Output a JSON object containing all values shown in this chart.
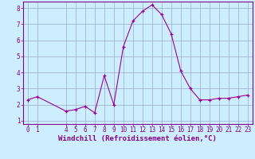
{
  "x": [
    0,
    1,
    4,
    5,
    6,
    7,
    8,
    9,
    10,
    11,
    12,
    13,
    14,
    15,
    16,
    17,
    18,
    19,
    20,
    21,
    22,
    23
  ],
  "y": [
    2.3,
    2.5,
    1.6,
    1.7,
    1.9,
    1.5,
    3.8,
    2.0,
    5.6,
    7.2,
    7.8,
    8.2,
    7.6,
    6.4,
    4.1,
    3.0,
    2.3,
    2.3,
    2.4,
    2.4,
    2.5,
    2.6
  ],
  "line_color": "#990099",
  "marker_color": "#990099",
  "bg_color": "#cceeff",
  "grid_color": "#99aacc",
  "xlabel": "Windchill (Refroidissement éolien,°C)",
  "xlim": [
    -0.5,
    23.5
  ],
  "ylim": [
    0.8,
    8.4
  ],
  "xticks": [
    0,
    1,
    4,
    5,
    6,
    7,
    8,
    9,
    10,
    11,
    12,
    13,
    14,
    15,
    16,
    17,
    18,
    19,
    20,
    21,
    22,
    23
  ],
  "yticks": [
    1,
    2,
    3,
    4,
    5,
    6,
    7,
    8
  ],
  "xlabel_fontsize": 6.5,
  "tick_fontsize": 5.5
}
